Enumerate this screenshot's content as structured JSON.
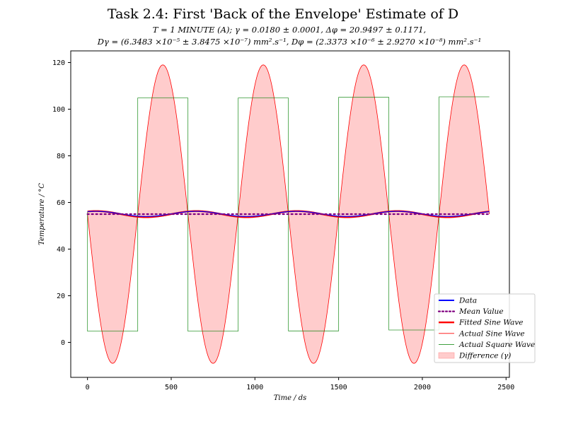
{
  "chart_data": {
    "type": "line",
    "title": "Task 2.4: First 'Back of the Envelope' Estimate of D",
    "subtitle_line1": "T = 1 MINUTE (A); γ = 0.0180 ± 0.0001, Δφ = 20.9497 ± 0.1171,",
    "subtitle_line2": "Dγ = (6.3483 ×10⁻⁵ ± 3.8475 ×10⁻⁷) mm².s⁻¹, Dφ = (2.3373 ×10⁻⁶ ± 2.9270 ×10⁻⁸) mm².s⁻¹",
    "xlabel": "Time / ds",
    "ylabel": "Temperature / °C",
    "xlim": [
      -100,
      2520
    ],
    "ylim": [
      -15,
      125
    ],
    "xticks": [
      0,
      500,
      1000,
      1500,
      2000,
      2500
    ],
    "yticks": [
      0,
      20,
      40,
      60,
      80,
      100,
      120
    ],
    "period": 600,
    "x_range": [
      0,
      2400
    ],
    "square_wave": {
      "segments": [
        {
          "x0": 0,
          "x1": 300,
          "y": 4.8
        },
        {
          "x0": 300,
          "x1": 600,
          "y": 104.8
        },
        {
          "x0": 600,
          "x1": 900,
          "y": 4.8
        },
        {
          "x0": 900,
          "x1": 1200,
          "y": 104.8
        },
        {
          "x0": 1200,
          "x1": 1500,
          "y": 4.9
        },
        {
          "x0": 1500,
          "x1": 1800,
          "y": 105.1
        },
        {
          "x0": 1800,
          "x1": 2100,
          "y": 5.3
        },
        {
          "x0": 2100,
          "x1": 2400,
          "y": 105.3
        }
      ],
      "start_y": 56
    },
    "actual_sine": {
      "mean": 55,
      "amplitude": 64,
      "period": 600,
      "peak_x": 450
    },
    "fitted_sine": {
      "mean": 55,
      "amplitude": 1.3,
      "period": 600,
      "peak_x": 1850
    },
    "data_wave": {
      "mean": 55.1,
      "amplitude": 1.1,
      "period": 600,
      "peak_x": 1850
    },
    "mean_value": 55,
    "colors": {
      "data": "#0000ff",
      "mean": "#800080",
      "fitted": "#ff0000",
      "actual_sine": "#ff0000",
      "square": "#008000",
      "fill": "#ffcccc"
    },
    "legend": [
      {
        "label": "Data",
        "style": "data"
      },
      {
        "label": "Mean Value",
        "style": "mean"
      },
      {
        "label": "Fitted Sine Wave",
        "style": "fitted"
      },
      {
        "label": "Actual Sine Wave",
        "style": "actual_sine"
      },
      {
        "label": "Actual Square Wave",
        "style": "square"
      },
      {
        "label": "Difference (γ)",
        "style": "fill"
      }
    ],
    "legend_position": "lower-right"
  }
}
